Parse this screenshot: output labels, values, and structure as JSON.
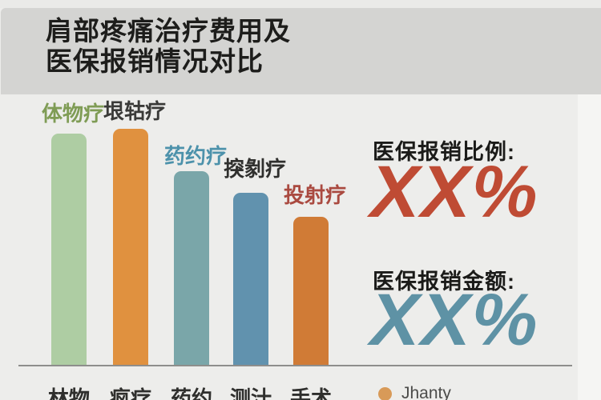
{
  "title": {
    "line1": "肩部疼痛治疗费用及",
    "line2": "医保报销情况对比"
  },
  "right_panel": {
    "ratio_heading": "医保报销比例:",
    "ratio_value": "XX%",
    "ratio_color": "#bf4b34",
    "amount_heading": "医保报销金额:",
    "amount_value": "XX%",
    "amount_color": "#5e92a5"
  },
  "legend": {
    "label": "Jhanty",
    "dot_color": "#d89a58"
  },
  "chart_data": {
    "type": "bar",
    "title": "肩部疼痛治疗费用及医保报销情况对比",
    "categories": [
      "林物",
      "疯疗",
      "药约",
      "测汁",
      "手术"
    ],
    "bar_labels": [
      "体物疗",
      "垠轱疗",
      "药约疗",
      "揬剶疗",
      "投射疗"
    ],
    "series": [
      {
        "name": "Jhanty",
        "values": [
          98,
          100,
          82,
          73,
          63
        ]
      }
    ],
    "values": [
      98,
      100,
      82,
      73,
      63
    ],
    "bar_colors": [
      "#aecda3",
      "#e0913f",
      "#7aa6a9",
      "#6192ae",
      "#d07b36"
    ],
    "bar_label_colors": [
      "#7f9c55",
      "#3a3a38",
      "#4d92ab",
      "#30302e",
      "#aa4a40"
    ],
    "xlabel": "",
    "ylabel": "",
    "ylim": [
      0,
      100
    ],
    "grid": false,
    "legend_position": "bottom-right",
    "legend_entries": [
      "Jhanty"
    ],
    "annotations": [
      "医保报销比例: XX%",
      "医保报销金额: XX%"
    ]
  }
}
